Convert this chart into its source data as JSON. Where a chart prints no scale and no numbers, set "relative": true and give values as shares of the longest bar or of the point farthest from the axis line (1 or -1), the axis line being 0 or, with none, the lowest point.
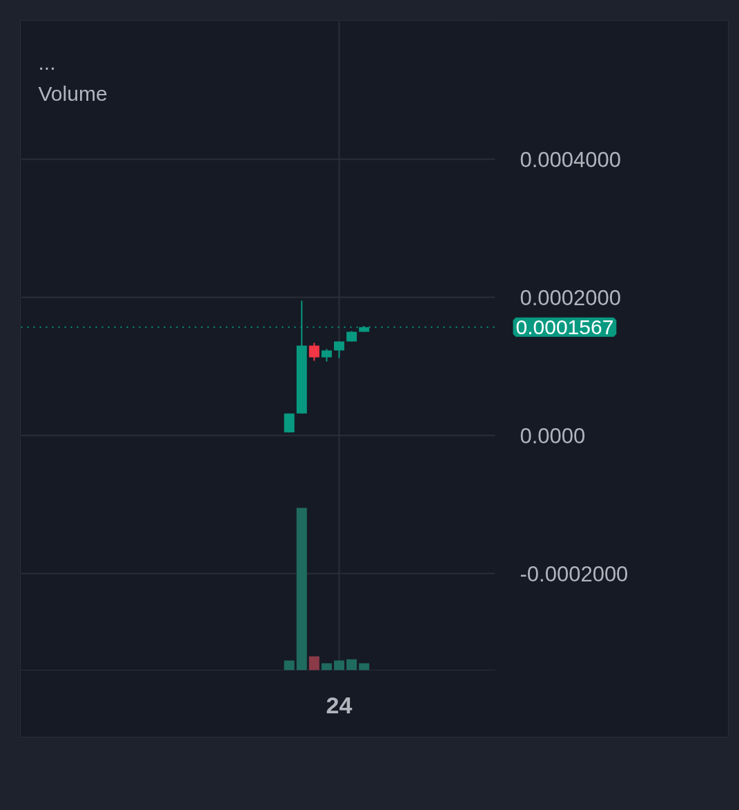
{
  "chart_data": [
    {
      "type": "candlestick",
      "categories": [
        null,
        null,
        null,
        null,
        null,
        null,
        null,
        null,
        null,
        null,
        null,
        null,
        null,
        null,
        null,
        null,
        null,
        null,
        null,
        null,
        null,
        null,
        null,
        null,
        null,
        "24",
        null,
        null,
        null,
        null,
        null,
        null,
        null,
        null,
        null,
        null,
        null,
        null
      ],
      "ohlc": [
        null,
        null,
        null,
        null,
        null,
        null,
        null,
        null,
        null,
        null,
        null,
        null,
        null,
        null,
        null,
        null,
        null,
        null,
        null,
        null,
        null,
        [
          4.3e-06,
          3.17e-05,
          4.3e-06,
          3.17e-05
        ],
        [
          3.17e-05,
          0.000195,
          3.17e-05,
          0.00013
        ],
        [
          0.00013,
          0.000134,
          0.000108,
          0.000113
        ],
        [
          0.000113,
          0.000125,
          0.000107,
          0.000123
        ],
        [
          0.000123,
          0.000136,
          0.000112,
          0.000136
        ],
        [
          0.000136,
          0.000151,
          0.000136,
          0.00015
        ],
        [
          0.00015,
          0.000158,
          0.00015,
          0.0001567
        ],
        null,
        null,
        null,
        null,
        null,
        null,
        null,
        null,
        null,
        null
      ],
      "colors": [
        null,
        null,
        null,
        null,
        null,
        null,
        null,
        null,
        null,
        null,
        null,
        null,
        null,
        null,
        null,
        null,
        null,
        null,
        null,
        null,
        null,
        "#089981",
        "#089981",
        "#f23645",
        "#089981",
        "#089981",
        "#089981",
        "#089981",
        null,
        null,
        null,
        null,
        null,
        null,
        null,
        null,
        null,
        null
      ],
      "ylim": [
        -0.00034,
        0.0006
      ],
      "yticks": [
        {
          "value": -0.0002,
          "label": "-0.0002000"
        },
        {
          "value": 0,
          "label": "0.0000"
        },
        {
          "value": 0.0002,
          "label": "0.0002000"
        },
        {
          "value": 0.0004,
          "label": "0.0004000"
        }
      ],
      "grid": true,
      "ref_lines": [
        {
          "axis": "y",
          "value": 0.0001567,
          "label": "0.0001567",
          "color": "#089981",
          "line_style": "dotted"
        }
      ],
      "annotations": [
        "..."
      ]
    },
    {
      "type": "bar",
      "title": "Volume",
      "relative": true,
      "categories": [
        null,
        null,
        null,
        null,
        null,
        null,
        null,
        null,
        null,
        null,
        null,
        null,
        null,
        null,
        null,
        null,
        null,
        null,
        null,
        null,
        null,
        null,
        null,
        null,
        null,
        null,
        null,
        null,
        null,
        null,
        null,
        null,
        null,
        null,
        null,
        null,
        null,
        null
      ],
      "values": [
        null,
        null,
        null,
        null,
        null,
        null,
        null,
        null,
        null,
        null,
        null,
        null,
        null,
        null,
        null,
        null,
        null,
        null,
        null,
        null,
        null,
        0.06,
        1,
        0.085,
        0.043,
        0.06,
        0.067,
        0.043,
        null,
        null,
        null,
        null,
        null,
        null,
        null,
        null,
        null,
        null
      ],
      "colors": [
        null,
        null,
        null,
        null,
        null,
        null,
        null,
        null,
        null,
        null,
        null,
        null,
        null,
        null,
        null,
        null,
        null,
        null,
        null,
        null,
        null,
        "#1f6b5f",
        "#1f6b5f",
        "#8b3a47",
        "#1f6b5f",
        "#1f6b5f",
        "#1f6b5f",
        "#1f6b5f",
        null,
        null,
        null,
        null,
        null,
        null,
        null,
        null,
        null,
        null
      ]
    }
  ]
}
